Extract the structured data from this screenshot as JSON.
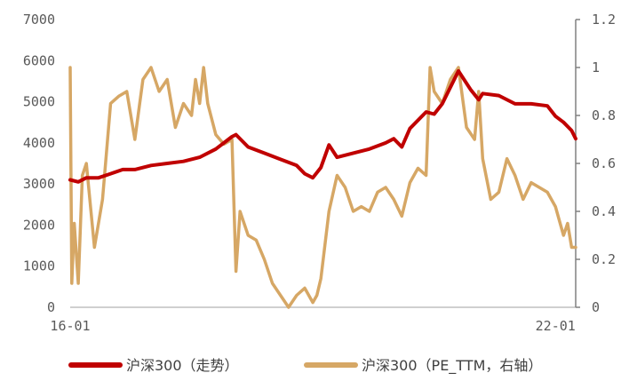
{
  "chart_data": {
    "type": "line",
    "title": "",
    "x_ticks": [
      "16-01",
      "22-01"
    ],
    "y_left": {
      "ticks": [
        "0",
        "1000",
        "2000",
        "3000",
        "4000",
        "5000",
        "6000",
        "7000"
      ],
      "ylim": [
        0,
        7000
      ]
    },
    "y_right": {
      "ticks": [
        "0",
        "0.2",
        "0.4",
        "0.6",
        "0.8",
        "1",
        "1.2"
      ],
      "ylim": [
        0,
        1.2
      ]
    },
    "grid": false,
    "legend_position": "bottom",
    "series": [
      {
        "name": "沪深300（走势）",
        "axis": "left",
        "color": "#C00000",
        "x": [
          2016.0,
          2016.1,
          2016.2,
          2016.35,
          2016.5,
          2016.65,
          2016.8,
          2017.0,
          2017.2,
          2017.4,
          2017.6,
          2017.8,
          2018.0,
          2018.05,
          2018.2,
          2018.4,
          2018.6,
          2018.8,
          2018.9,
          2019.0,
          2019.1,
          2019.2,
          2019.3,
          2019.5,
          2019.7,
          2019.9,
          2020.0,
          2020.1,
          2020.2,
          2020.4,
          2020.5,
          2020.6,
          2020.8,
          2020.95,
          2021.05,
          2021.1,
          2021.3,
          2021.5,
          2021.7,
          2021.9,
          2022.0,
          2022.1,
          2022.2,
          2022.25
        ],
        "values": [
          3100,
          3050,
          3150,
          3150,
          3250,
          3350,
          3350,
          3450,
          3500,
          3550,
          3650,
          3850,
          4150,
          4200,
          3900,
          3750,
          3600,
          3450,
          3250,
          3150,
          3400,
          3950,
          3650,
          3750,
          3850,
          4000,
          4100,
          3900,
          4350,
          4750,
          4700,
          4950,
          5750,
          5300,
          5050,
          5200,
          5150,
          4950,
          4950,
          4900,
          4650,
          4500,
          4300,
          4100
        ]
      },
      {
        "name": "沪深300（PE_TTM，右轴）",
        "axis": "right",
        "color": "#D6A765",
        "x": [
          2016.0,
          2016.02,
          2016.05,
          2016.1,
          2016.15,
          2016.2,
          2016.3,
          2016.4,
          2016.5,
          2016.6,
          2016.7,
          2016.8,
          2016.9,
          2017.0,
          2017.1,
          2017.2,
          2017.3,
          2017.4,
          2017.5,
          2017.55,
          2017.6,
          2017.65,
          2017.7,
          2017.8,
          2017.9,
          2018.0,
          2018.05,
          2018.1,
          2018.2,
          2018.3,
          2018.4,
          2018.5,
          2018.6,
          2018.7,
          2018.8,
          2018.9,
          2019.0,
          2019.05,
          2019.1,
          2019.2,
          2019.3,
          2019.4,
          2019.5,
          2019.6,
          2019.7,
          2019.8,
          2019.9,
          2020.0,
          2020.1,
          2020.2,
          2020.3,
          2020.4,
          2020.45,
          2020.5,
          2020.6,
          2020.7,
          2020.8,
          2020.9,
          2021.0,
          2021.05,
          2021.1,
          2021.2,
          2021.3,
          2021.4,
          2021.5,
          2021.6,
          2021.7,
          2021.8,
          2021.9,
          2022.0,
          2022.1,
          2022.15,
          2022.2,
          2022.25
        ],
        "values": [
          1.0,
          0.1,
          0.35,
          0.1,
          0.55,
          0.6,
          0.25,
          0.45,
          0.85,
          0.88,
          0.9,
          0.7,
          0.95,
          1.0,
          0.9,
          0.95,
          0.75,
          0.85,
          0.8,
          0.95,
          0.85,
          1.0,
          0.85,
          0.72,
          0.68,
          0.7,
          0.15,
          0.4,
          0.3,
          0.28,
          0.2,
          0.1,
          0.05,
          0.0,
          0.05,
          0.08,
          0.02,
          0.05,
          0.12,
          0.4,
          0.55,
          0.5,
          0.4,
          0.42,
          0.4,
          0.48,
          0.5,
          0.45,
          0.38,
          0.52,
          0.58,
          0.55,
          1.0,
          0.9,
          0.85,
          0.95,
          1.0,
          0.75,
          0.7,
          0.9,
          0.62,
          0.45,
          0.48,
          0.62,
          0.55,
          0.45,
          0.52,
          0.5,
          0.48,
          0.42,
          0.3,
          0.35,
          0.25,
          0.25
        ]
      }
    ]
  }
}
